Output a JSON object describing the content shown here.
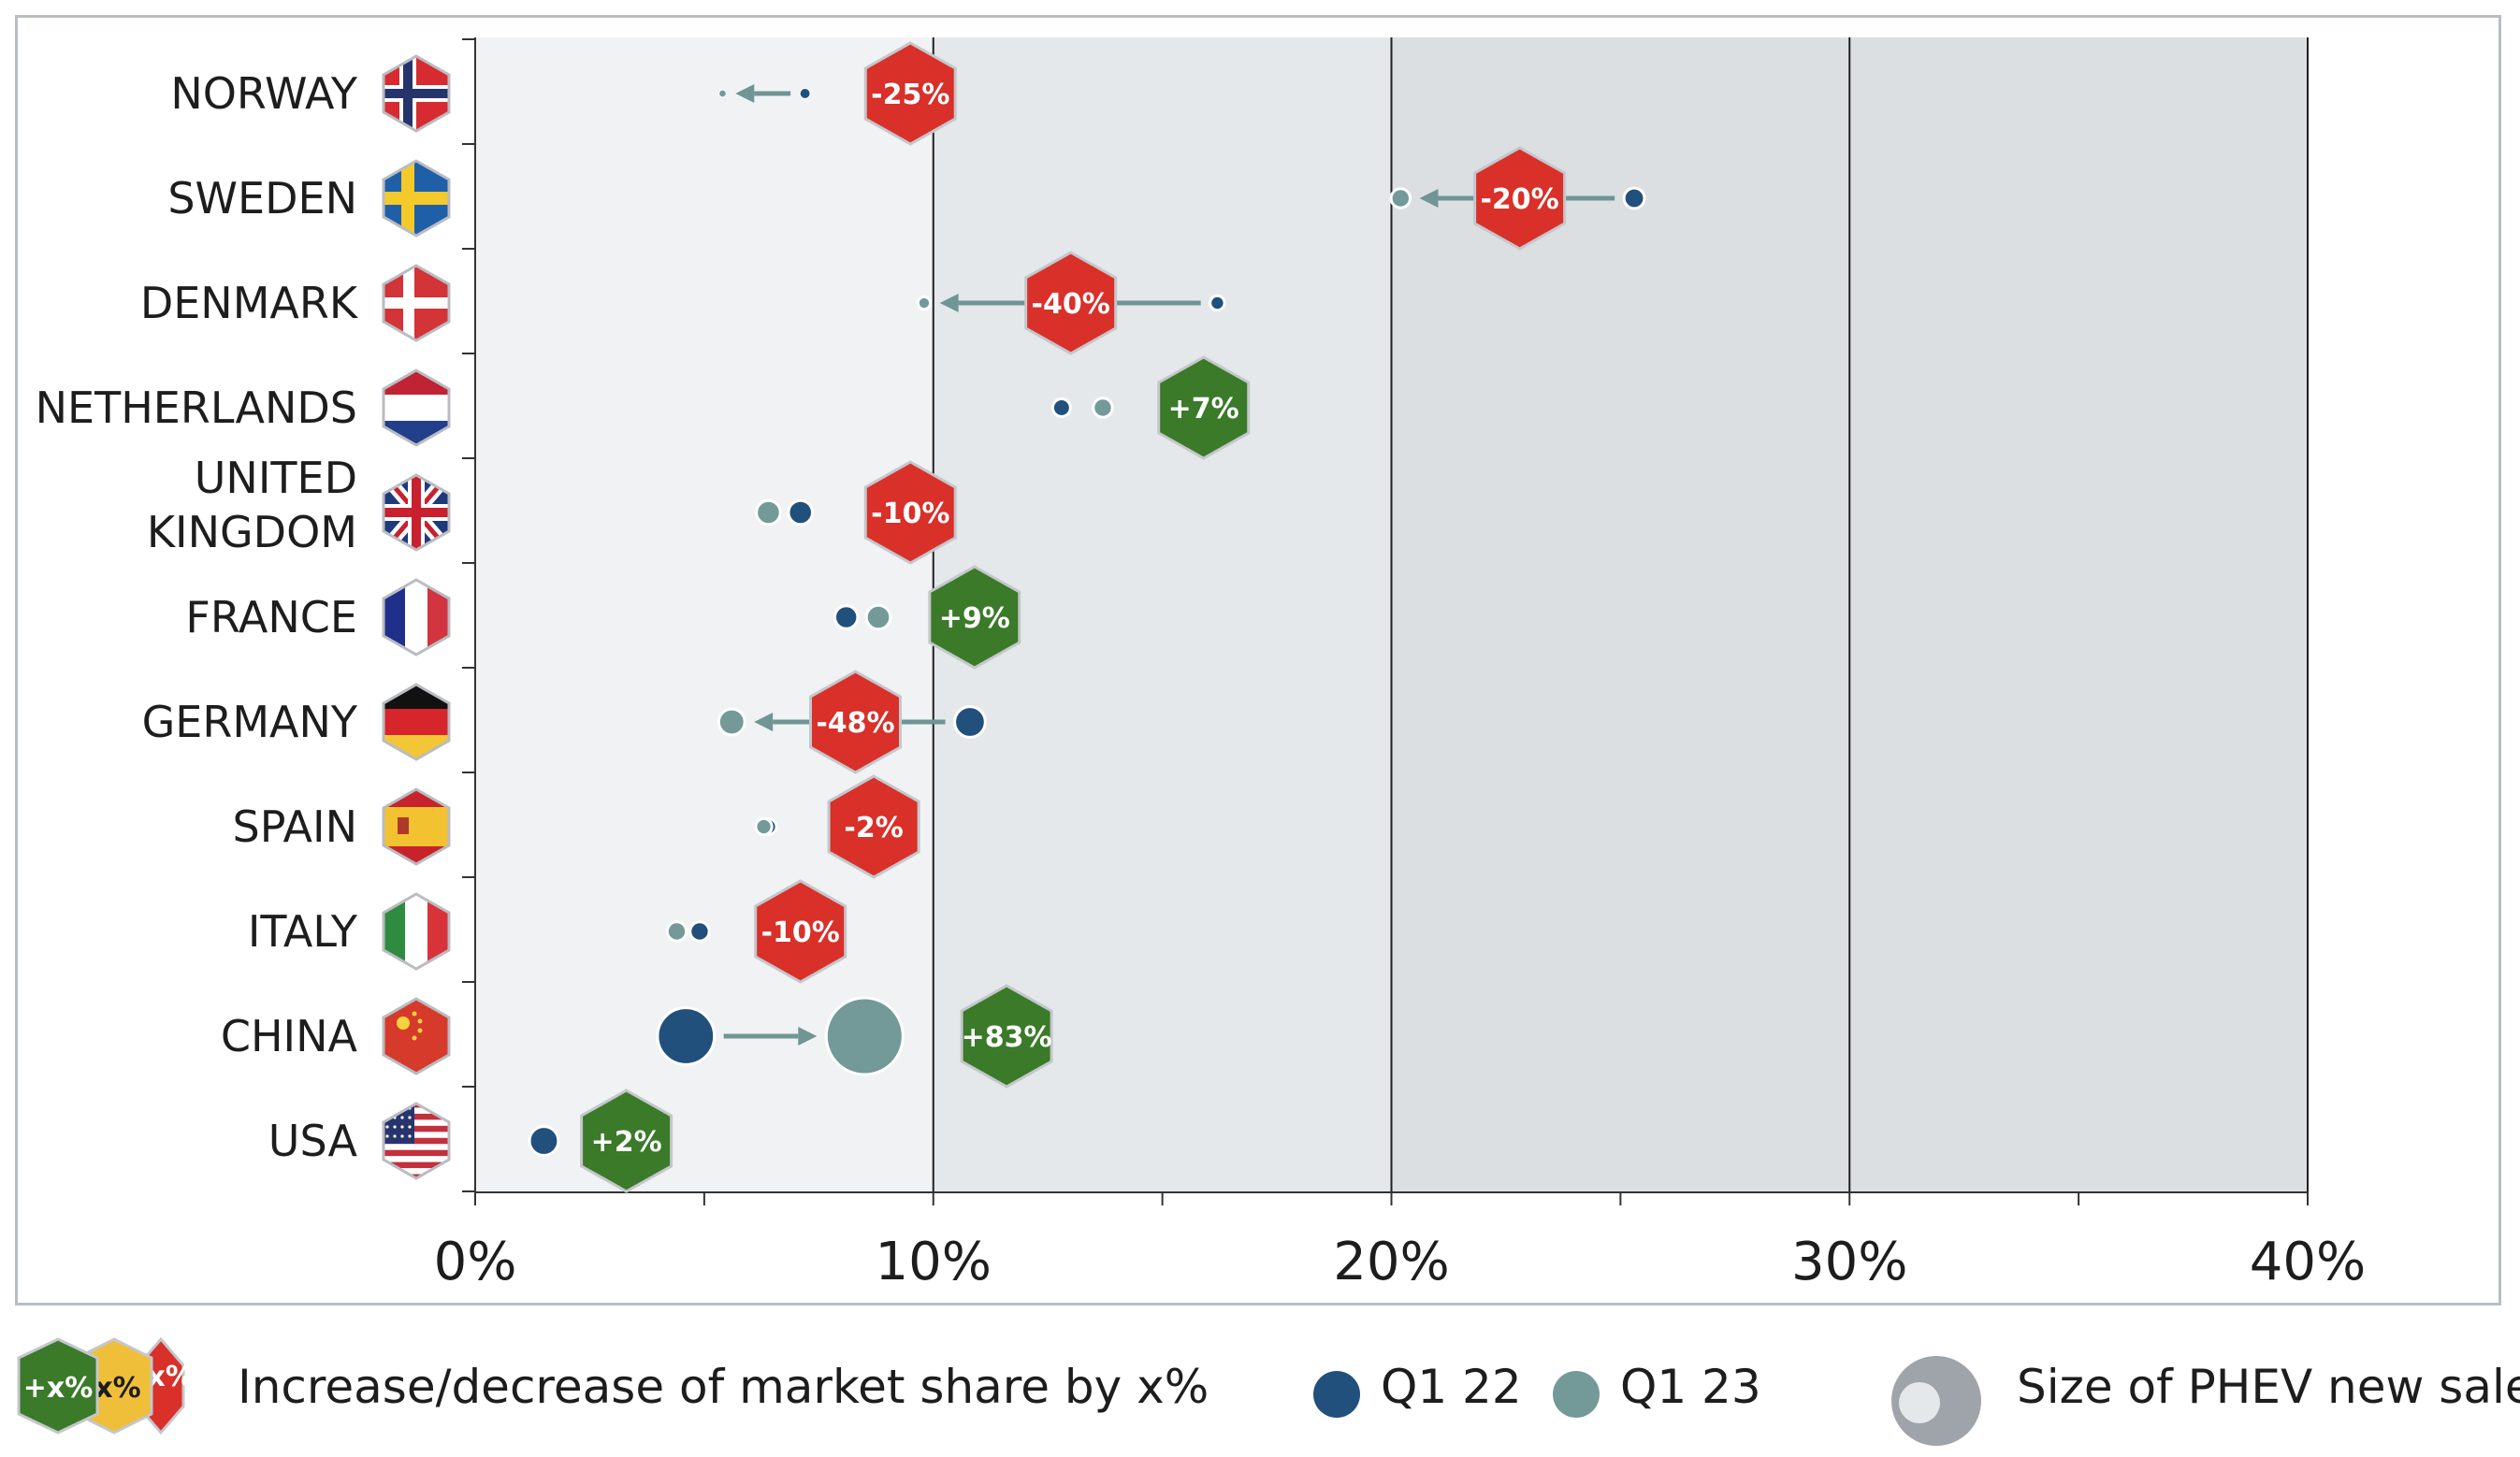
{
  "chart_data": {
    "type": "scatter",
    "xlim": [
      0,
      40
    ],
    "x_ticks": [
      "0%",
      "10%",
      "20%",
      "30%",
      "40%"
    ],
    "series": [
      {
        "name": "Q1 22",
        "color": "#21507c"
      },
      {
        "name": "Q1 23",
        "color": "#739a98"
      }
    ],
    "countries": [
      {
        "name": "NORWAY",
        "flag": "norway-flag-icon",
        "q1_22": 7.2,
        "q1_23": 5.4,
        "size_22": 0.2,
        "size_23": 0.1,
        "change": "-25%",
        "trend": "decrease",
        "badge_x": 9.5
      },
      {
        "name": "SWEDEN",
        "flag": "sweden-flag-icon",
        "q1_22": 25.3,
        "q1_23": 20.2,
        "size_22": 0.8,
        "size_23": 0.7,
        "change": "-20%",
        "trend": "decrease",
        "badge_x": 22.8
      },
      {
        "name": "DENMARK",
        "flag": "denmark-flag-icon",
        "q1_22": 16.2,
        "q1_23": 9.8,
        "size_22": 0.4,
        "size_23": 0.3,
        "change": "-40%",
        "trend": "decrease",
        "badge_x": 13.0
      },
      {
        "name": "NETHERLANDS",
        "flag": "netherlands-flag-icon",
        "q1_22": 12.8,
        "q1_23": 13.7,
        "size_22": 0.6,
        "size_23": 0.7,
        "change": "+7%",
        "trend": "increase",
        "badge_x": 15.9
      },
      {
        "name": "UNITED KINGDOM",
        "flag": "uk-flag-icon",
        "q1_22": 7.1,
        "q1_23": 6.4,
        "size_22": 1.1,
        "size_23": 1.1,
        "change": "-10%",
        "trend": "decrease",
        "badge_x": 9.5
      },
      {
        "name": "FRANCE",
        "flag": "france-flag-icon",
        "q1_22": 8.1,
        "q1_23": 8.8,
        "size_22": 1.0,
        "size_23": 1.1,
        "change": "+9%",
        "trend": "increase",
        "badge_x": 10.9
      },
      {
        "name": "GERMANY",
        "flag": "germany-flag-icon",
        "q1_22": 10.8,
        "q1_23": 5.6,
        "size_22": 1.8,
        "size_23": 1.3,
        "change": "-48%",
        "trend": "decrease",
        "badge_x": 8.3
      },
      {
        "name": "SPAIN",
        "flag": "spain-flag-icon",
        "q1_22": 6.4,
        "q1_23": 6.3,
        "size_22": 0.5,
        "size_23": 0.5,
        "change": "-2%",
        "trend": "decrease",
        "badge_x": 8.7
      },
      {
        "name": "ITALY",
        "flag": "italy-flag-icon",
        "q1_22": 4.9,
        "q1_23": 4.4,
        "size_22": 0.7,
        "size_23": 0.7,
        "change": "-10%",
        "trend": "decrease",
        "badge_x": 7.1
      },
      {
        "name": "CHINA",
        "flag": "china-flag-icon",
        "q1_22": 4.6,
        "q1_23": 8.5,
        "size_22": 6.2,
        "size_23": 11.3,
        "change": "+83%",
        "trend": "increase",
        "badge_x": 11.6
      },
      {
        "name": "USA",
        "flag": "usa-flag-icon",
        "q1_22": 1.5,
        "q1_23": null,
        "size_22": 1.6,
        "size_23": null,
        "change": "+2%",
        "trend": "increase",
        "badge_x": 3.3
      }
    ],
    "badge_colors": {
      "increase": "#3a7a29",
      "decrease": "#d9302a",
      "neutral": "#f0bf3a"
    }
  },
  "legend": {
    "badge_samples": [
      "+x%",
      "x%",
      "-x%"
    ],
    "badge_text": "Increase/decrease of market share by x%",
    "q1_22": "Q1 22",
    "q1_23": "Q1 23",
    "size_text": "Size of PHEV new sales"
  }
}
